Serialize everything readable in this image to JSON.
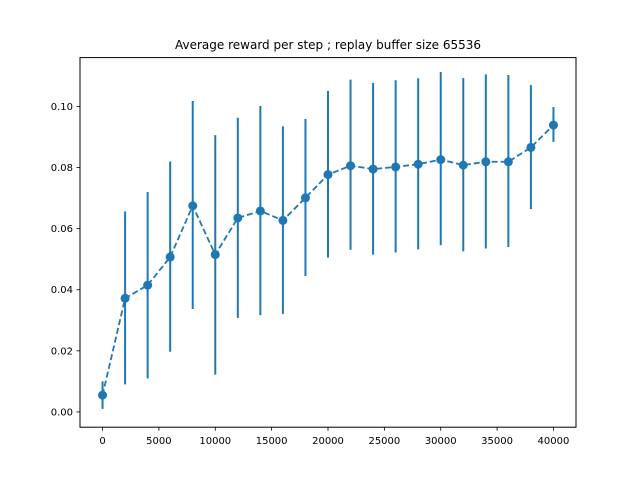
{
  "chart_data": {
    "type": "line",
    "title": "Average reward per step ; replay buffer size 65536",
    "xlabel": "",
    "ylabel": "",
    "xlim": [
      -2000,
      42000
    ],
    "ylim": [
      -0.005,
      0.116
    ],
    "x_ticks": [
      0,
      5000,
      10000,
      15000,
      20000,
      25000,
      30000,
      35000,
      40000
    ],
    "x_tick_labels": [
      "0",
      "5000",
      "10000",
      "15000",
      "20000",
      "25000",
      "30000",
      "35000",
      "40000"
    ],
    "y_ticks": [
      0.0,
      0.02,
      0.04,
      0.06,
      0.08,
      0.1
    ],
    "y_tick_labels": [
      "0.00",
      "0.02",
      "0.04",
      "0.06",
      "0.08",
      "0.10"
    ],
    "grid": false,
    "legend": "none",
    "color": "#1f77b4",
    "series": [
      {
        "line_style": "dashed",
        "marker": "circle",
        "error_bars": true,
        "x": [
          0,
          2000,
          4000,
          6000,
          8000,
          10000,
          12000,
          14000,
          16000,
          18000,
          20000,
          22000,
          24000,
          26000,
          28000,
          30000,
          32000,
          34000,
          36000,
          38000,
          40000
        ],
        "y": [
          0.0055,
          0.0372,
          0.0415,
          0.0507,
          0.0675,
          0.0515,
          0.0635,
          0.0658,
          0.0627,
          0.0701,
          0.0777,
          0.0806,
          0.0795,
          0.0802,
          0.0811,
          0.0826,
          0.0808,
          0.0819,
          0.0819,
          0.0866,
          0.0939
        ],
        "y_low": [
          0.001,
          0.009,
          0.011,
          0.0197,
          0.0337,
          0.0122,
          0.0308,
          0.0317,
          0.0321,
          0.0445,
          0.0505,
          0.0531,
          0.0515,
          0.0522,
          0.0532,
          0.0546,
          0.0526,
          0.0535,
          0.054,
          0.0664,
          0.0884
        ],
        "y_high": [
          0.01,
          0.0656,
          0.072,
          0.082,
          0.1018,
          0.0906,
          0.0963,
          0.1002,
          0.0935,
          0.0959,
          0.1051,
          0.1088,
          0.1077,
          0.1086,
          0.1092,
          0.1113,
          0.1093,
          0.1105,
          0.1103,
          0.107,
          0.0998
        ]
      }
    ]
  }
}
